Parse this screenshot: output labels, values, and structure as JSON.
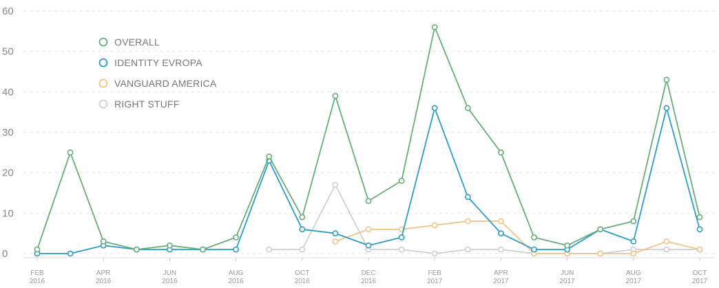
{
  "chart_data": {
    "type": "line",
    "title": "",
    "xlabel": "",
    "ylabel": "",
    "ylim": [
      0,
      60
    ],
    "yticks": [
      0,
      10,
      20,
      30,
      40,
      50,
      60
    ],
    "grid": true,
    "legend_position": "top-left",
    "x_tick_labels": [
      {
        "month": "FEB",
        "year": "2016"
      },
      {
        "month": "APR",
        "year": "2016"
      },
      {
        "month": "JUN",
        "year": "2016"
      },
      {
        "month": "AUG",
        "year": "2016"
      },
      {
        "month": "OCT",
        "year": "2016"
      },
      {
        "month": "DEC",
        "year": "2016"
      },
      {
        "month": "FEB",
        "year": "2017"
      },
      {
        "month": "APR",
        "year": "2017"
      },
      {
        "month": "JUN",
        "year": "2017"
      },
      {
        "month": "AUG",
        "year": "2017"
      },
      {
        "month": "OCT",
        "year": "2017"
      }
    ],
    "x": [
      "2016-02",
      "2016-03",
      "2016-04",
      "2016-05",
      "2016-06",
      "2016-07",
      "2016-08",
      "2016-09",
      "2016-10",
      "2016-11",
      "2016-12",
      "2017-01",
      "2017-02",
      "2017-03",
      "2017-04",
      "2017-05",
      "2017-06",
      "2017-07",
      "2017-08",
      "2017-09",
      "2017-10"
    ],
    "series": [
      {
        "name": "OVERALL",
        "color": "#66ad78",
        "values": [
          1,
          25,
          3,
          1,
          2,
          1,
          4,
          24,
          9,
          39,
          13,
          18,
          56,
          36,
          25,
          4,
          2,
          6,
          8,
          43,
          9
        ]
      },
      {
        "name": "IDENTITY EVROPA",
        "color": "#2b9cc6",
        "values": [
          0,
          0,
          2,
          1,
          1,
          1,
          1,
          23,
          6,
          5,
          2,
          4,
          36,
          14,
          5,
          1,
          1,
          6,
          3,
          36,
          6
        ]
      },
      {
        "name": "VANGUARD AMERICA",
        "color": "#f1c489",
        "values": [
          null,
          null,
          null,
          null,
          null,
          null,
          null,
          null,
          null,
          3,
          6,
          6,
          7,
          8,
          8,
          0,
          0,
          0,
          0,
          3,
          1
        ]
      },
      {
        "name": "RIGHT STUFF",
        "color": "#cfcfcf",
        "values": [
          null,
          null,
          null,
          null,
          null,
          null,
          null,
          1,
          1,
          17,
          1,
          1,
          0,
          1,
          1,
          0,
          0,
          0,
          1,
          1,
          1
        ]
      }
    ]
  }
}
